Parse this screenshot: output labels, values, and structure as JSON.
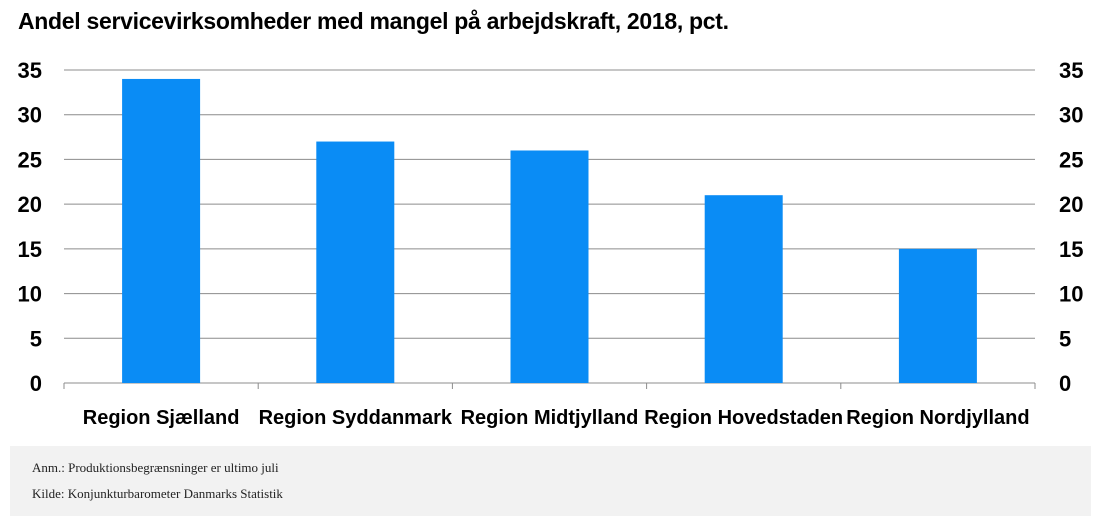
{
  "title": "Andel servicevirksomheder med mangel på arbejdskraft, 2018, pct.",
  "colors": {
    "bar": "#0a8cf5",
    "grid": "#8c8c8c",
    "footer_bg": "#f2f2f2"
  },
  "chart_data": {
    "type": "bar",
    "title": "Andel servicevirksomheder med mangel på arbejdskraft, 2018, pct.",
    "categories": [
      "Region Sjælland",
      "Region Syddanmark",
      "Region Midtjylland",
      "Region Hovedstaden",
      "Region Nordjylland"
    ],
    "values": [
      34,
      27,
      26,
      21,
      15
    ],
    "ylim": [
      0,
      35
    ],
    "yticks": [
      0,
      5,
      10,
      15,
      20,
      25,
      30,
      35
    ],
    "grid": true,
    "secondary_axis": true
  },
  "footer": {
    "note": "Anm.: Produktionsbegrænsninger er ultimo juli",
    "source": "Kilde: Konjunkturbarometer Danmarks Statistik"
  }
}
